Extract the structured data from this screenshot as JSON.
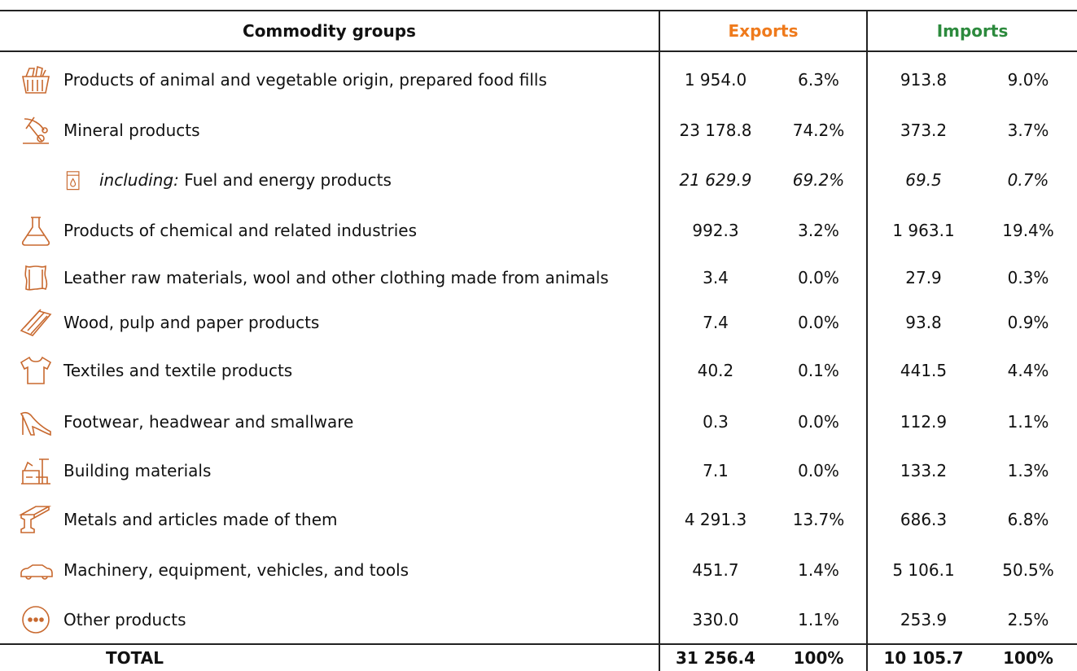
{
  "header": {
    "commodity": "Commodity groups",
    "exports": "Exports",
    "imports": "Imports"
  },
  "rows": [
    {
      "label": "Products of animal and vegetable origin, prepared food fills",
      "export_value": "1 954.0",
      "export_share": "6.3%",
      "import_value": "913.8",
      "import_share": "9.0%"
    },
    {
      "label": "Mineral products",
      "export_value": "23 178.8",
      "export_share": "74.2%",
      "import_value": "373.2",
      "import_share": "3.7%"
    },
    {
      "prefix": "including:",
      "label": "Fuel and energy products",
      "export_value": "21 629.9",
      "export_share": "69.2%",
      "import_value": "69.5",
      "import_share": "0.7%"
    },
    {
      "label": "Products of chemical and related industries",
      "export_value": "992.3",
      "export_share": "3.2%",
      "import_value": "1 963.1",
      "import_share": "19.4%"
    },
    {
      "label": "Leather raw materials, wool and other clothing made from animals",
      "export_value": "3.4",
      "export_share": "0.0%",
      "import_value": "27.9",
      "import_share": "0.3%"
    },
    {
      "label": "Wood, pulp and paper products",
      "export_value": "7.4",
      "export_share": "0.0%",
      "import_value": "93.8",
      "import_share": "0.9%"
    },
    {
      "label": "Textiles and textile products",
      "export_value": "40.2",
      "export_share": "0.1%",
      "import_value": "441.5",
      "import_share": "4.4%"
    },
    {
      "label": "Footwear, headwear and smallware",
      "export_value": "0.3",
      "export_share": "0.0%",
      "import_value": "112.9",
      "import_share": "1.1%"
    },
    {
      "label": "Building materials",
      "export_value": "7.1",
      "export_share": "0.0%",
      "import_value": "133.2",
      "import_share": "1.3%"
    },
    {
      "label": "Metals and articles made of them",
      "export_value": "4 291.3",
      "export_share": "13.7%",
      "import_value": "686.3",
      "import_share": "6.8%"
    },
    {
      "label": "Machinery, equipment, vehicles, and tools",
      "export_value": "451.7",
      "export_share": "1.4%",
      "import_value": "5 106.1",
      "import_share": "50.5%"
    },
    {
      "label": "Other products",
      "export_value": "330.0",
      "export_share": "1.1%",
      "import_value": "253.9",
      "import_share": "2.5%"
    }
  ],
  "total": {
    "label": "TOTAL",
    "export_value": "31 256.4",
    "export_share": "100%",
    "import_value": "10 105.7",
    "import_share": "100%"
  }
}
